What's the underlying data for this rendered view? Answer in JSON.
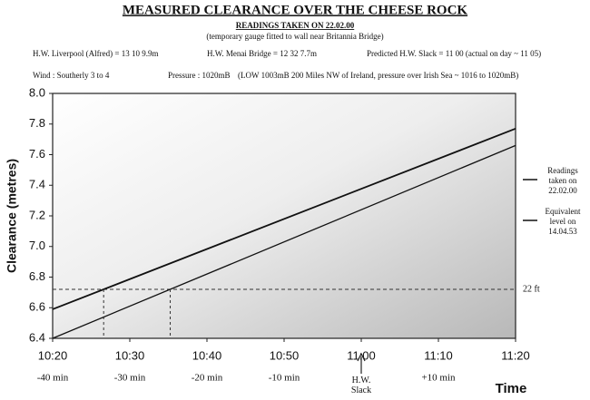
{
  "chart_data": {
    "type": "line",
    "title": "MEASURED CLEARANCE OVER THE CHEESE ROCK",
    "subtitle": "READINGS TAKEN ON 22.02.00",
    "note": "(temporary gauge fitted to wall near Britannia Bridge)",
    "info": [
      "H.W. Liverpool (Alfred) = 13 10  9.9m",
      "H.W. Menai Bridge = 12 32  7.7m",
      "Predicted H.W. Slack = 11 00 (actual on day ~ 11 05)"
    ],
    "conditions": [
      "Wind : Southerly 3 to 4",
      "Pressure : 1020mB",
      "(LOW 1003mB 200 Miles NW of Ireland,  pressure over Irish Sea ~ 1016 to 1020mB)"
    ],
    "x_label": "Time",
    "y_label": "Clearance (metres)",
    "x": [
      -40,
      20
    ],
    "series": [
      {
        "name": "Readings taken on 22.02.00",
        "color": "#111111",
        "values": [
          6.59,
          7.77
        ]
      },
      {
        "name": "Equivalent level on 14.04.53",
        "color": "#111111",
        "values": [
          6.4,
          7.66
        ]
      }
    ],
    "xlim": [
      -40,
      20
    ],
    "xticks": [
      {
        "value": -40,
        "label": "10:20"
      },
      {
        "value": -30,
        "label": "10:30"
      },
      {
        "value": -20,
        "label": "10:40"
      },
      {
        "value": -10,
        "label": "10:50"
      },
      {
        "value": 0,
        "label": "11:00"
      },
      {
        "value": 10,
        "label": "11:10"
      },
      {
        "value": 20,
        "label": "11:20"
      }
    ],
    "x2ticks": [
      {
        "value": -40,
        "label": "-40 min"
      },
      {
        "value": -30,
        "label": "-30 min"
      },
      {
        "value": -20,
        "label": "-20 min"
      },
      {
        "value": -10,
        "label": "-10 min"
      },
      {
        "value": 10,
        "label": "+10 min"
      }
    ],
    "ylim": [
      6.4,
      8.0
    ],
    "yticks": [
      6.4,
      6.6,
      6.8,
      {
        "value": 7,
        "label": "7.0"
      },
      7.2,
      7.4,
      7.6,
      7.8,
      {
        "value": 8,
        "label": "8.0"
      }
    ],
    "reference": {
      "value": 6.72,
      "label": "22 ft"
    },
    "annotation": {
      "text": "H.W. Slack",
      "x": 0
    }
  }
}
